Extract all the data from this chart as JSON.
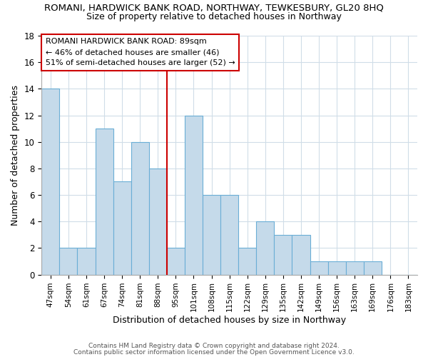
{
  "title": "ROMANI, HARDWICK BANK ROAD, NORTHWAY, TEWKESBURY, GL20 8HQ",
  "subtitle": "Size of property relative to detached houses in Northway",
  "xlabel": "Distribution of detached houses by size in Northway",
  "ylabel": "Number of detached properties",
  "bar_labels": [
    "47sqm",
    "54sqm",
    "61sqm",
    "67sqm",
    "74sqm",
    "81sqm",
    "88sqm",
    "95sqm",
    "101sqm",
    "108sqm",
    "115sqm",
    "122sqm",
    "129sqm",
    "135sqm",
    "142sqm",
    "149sqm",
    "156sqm",
    "163sqm",
    "169sqm",
    "176sqm",
    "183sqm"
  ],
  "bar_heights": [
    14,
    2,
    2,
    11,
    7,
    10,
    8,
    2,
    12,
    6,
    6,
    2,
    4,
    3,
    3,
    1,
    1,
    1,
    1,
    0,
    0
  ],
  "bar_color": "#c5daea",
  "bar_edge_color": "#6aaed6",
  "reference_line_color": "#cc0000",
  "reference_line_idx": 6,
  "annotation_text": "ROMANI HARDWICK BANK ROAD: 89sqm\n← 46% of detached houses are smaller (46)\n51% of semi-detached houses are larger (52) →",
  "annotation_box_edge": "#cc0000",
  "annotation_box_face": "#ffffff",
  "ylim": [
    0,
    18
  ],
  "yticks": [
    0,
    2,
    4,
    6,
    8,
    10,
    12,
    14,
    16,
    18
  ],
  "grid_color": "#d0dde8",
  "title_fontsize": 9.5,
  "subtitle_fontsize": 9,
  "footer1": "Contains HM Land Registry data © Crown copyright and database right 2024.",
  "footer2": "Contains public sector information licensed under the Open Government Licence v3.0."
}
